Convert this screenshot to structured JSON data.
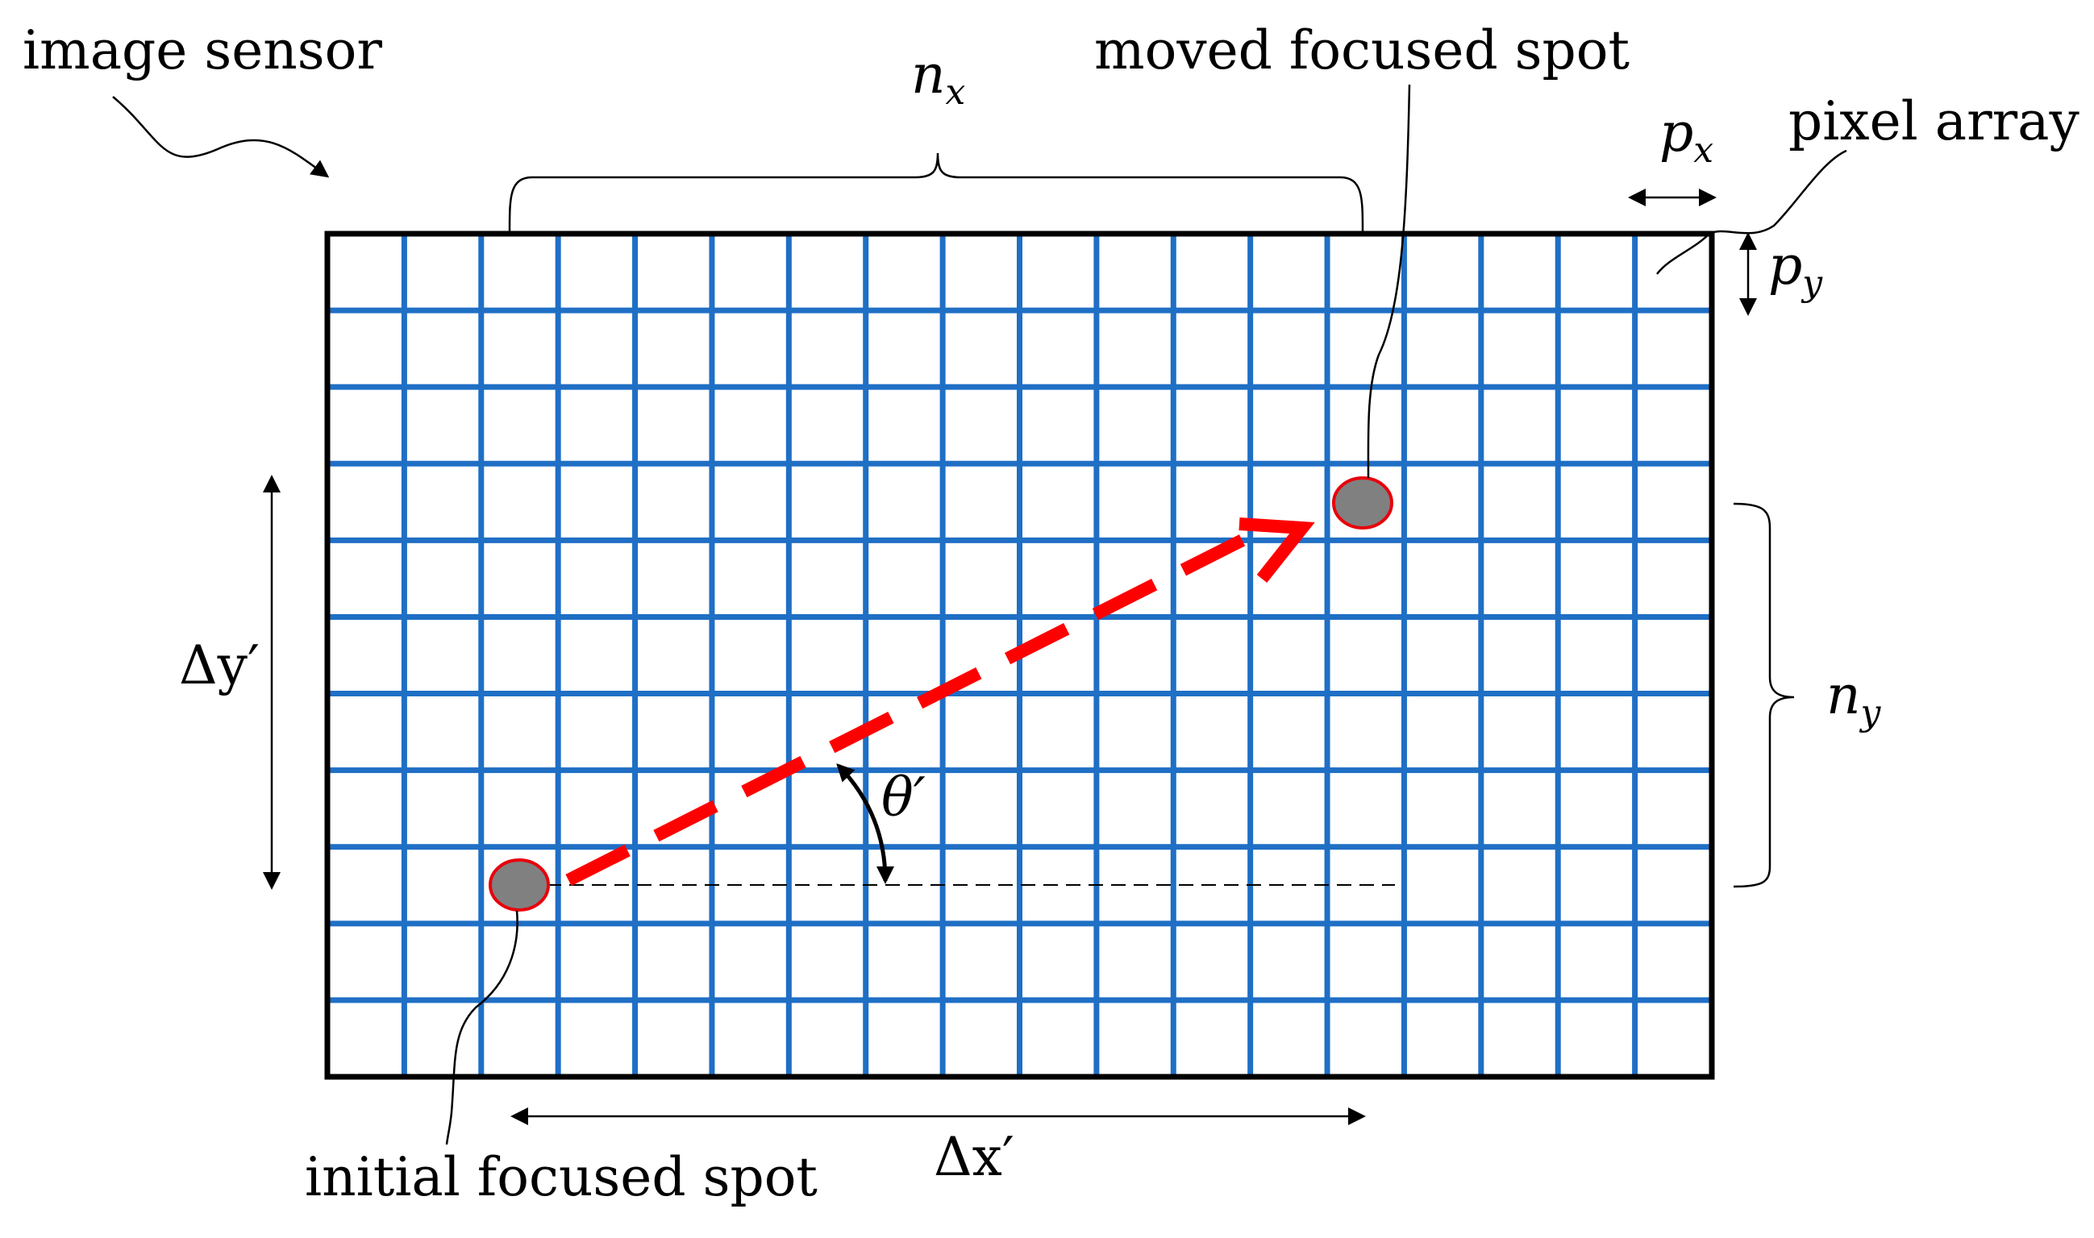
{
  "labels": {
    "image_sensor": "image sensor",
    "moved_spot": "moved focused spot",
    "pixel_array": "pixel array",
    "initial_spot": "initial focused spot"
  },
  "symbols": {
    "nx_base": "n",
    "nx_sub": "x",
    "ny_base": "n",
    "ny_sub": "y",
    "px_base": "p",
    "px_sub": "x",
    "py_base": "p",
    "py_sub": "y",
    "dy": "Δy′",
    "dx": "Δx′",
    "theta": "θ′"
  },
  "grid": {
    "columns": 18,
    "rows": 11
  },
  "colors": {
    "grid_line": "#1f6fc5",
    "border": "#000000",
    "path": "#ff0000",
    "spot_fill": "#808080",
    "spot_outline": "#e8000b"
  }
}
